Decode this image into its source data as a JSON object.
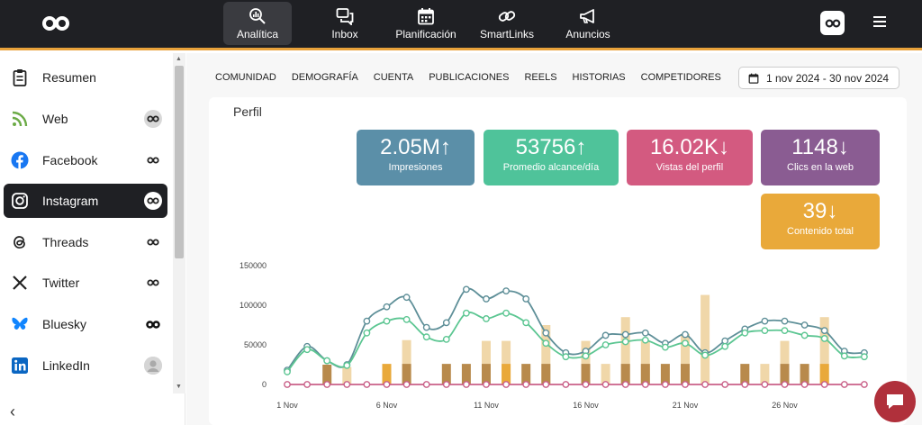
{
  "topnav": {
    "items": [
      {
        "label": "Analítica",
        "icon": "analytics-icon",
        "active": true
      },
      {
        "label": "Inbox",
        "icon": "chat-bubbles-icon"
      },
      {
        "label": "Planificación",
        "icon": "calendar-icon"
      },
      {
        "label": "SmartLinks",
        "icon": "link-icon"
      },
      {
        "label": "Anuncios",
        "icon": "megaphone-icon"
      }
    ]
  },
  "sidebar": {
    "items": [
      {
        "label": "Resumen",
        "icon": "clipboard-icon"
      },
      {
        "label": "Web",
        "icon": "rss-icon"
      },
      {
        "label": "Facebook",
        "icon": "facebook-icon"
      },
      {
        "label": "Instagram",
        "icon": "instagram-icon",
        "active": true
      },
      {
        "label": "Threads",
        "icon": "threads-icon"
      },
      {
        "label": "Twitter",
        "icon": "x-icon"
      },
      {
        "label": "Bluesky",
        "icon": "butterfly-icon"
      },
      {
        "label": "LinkedIn",
        "icon": "linkedin-icon"
      }
    ]
  },
  "tabs": [
    "COMUNIDAD",
    "DEMOGRAFÍA",
    "CUENTA",
    "PUBLICACIONES",
    "REELS",
    "HISTORIAS",
    "COMPETIDORES"
  ],
  "date_range": "1 nov 2024 - 30 nov 2024",
  "section_title": "Perfil",
  "kpis": [
    {
      "value": "2.05M",
      "arrow": "↑",
      "label": "Impresiones",
      "color": "#5b8fa8"
    },
    {
      "value": "53756",
      "arrow": "↑",
      "label": "Promedio alcance/día",
      "color": "#4fc39a"
    },
    {
      "value": "16.02K",
      "arrow": "↓",
      "label": "Vistas del perfil",
      "color": "#d35a80"
    },
    {
      "value": "1148",
      "arrow": "↓",
      "label": "Clics en la web",
      "color": "#8a5c92"
    },
    {
      "value": "39",
      "arrow": "↓",
      "label": "Contenido total",
      "color": "#e9a93a"
    }
  ],
  "colors": {
    "topbar": "#1f2024",
    "accent": "#e9a23b",
    "line_impressions": "#5e8f98",
    "line_reach": "#5cc692",
    "line_zero": "#c96088",
    "bar_light": "#f0d7a9",
    "bar_brown": "#b88a4c",
    "bar_orange": "#e9a93a"
  },
  "chart_data": {
    "type": "line",
    "x": [
      "1 Nov",
      "2 Nov",
      "3 Nov",
      "4 Nov",
      "5 Nov",
      "6 Nov",
      "7 Nov",
      "8 Nov",
      "9 Nov",
      "10 Nov",
      "11 Nov",
      "12 Nov",
      "13 Nov",
      "14 Nov",
      "15 Nov",
      "16 Nov",
      "17 Nov",
      "18 Nov",
      "19 Nov",
      "20 Nov",
      "21 Nov",
      "22 Nov",
      "23 Nov",
      "24 Nov",
      "25 Nov",
      "26 Nov",
      "27 Nov",
      "28 Nov",
      "29 Nov",
      "30 Nov"
    ],
    "x_tick_labels": [
      "1 Nov",
      "6 Nov",
      "11 Nov",
      "16 Nov",
      "21 Nov",
      "26 Nov"
    ],
    "x_tick_index": [
      0,
      5,
      10,
      15,
      20,
      25
    ],
    "y_ticks": [
      0,
      50000,
      100000,
      150000
    ],
    "ylim": [
      0,
      150000
    ],
    "series": [
      {
        "values": [
          18000,
          48000,
          30000,
          25000,
          80000,
          98000,
          110000,
          72000,
          78000,
          120000,
          108000,
          118000,
          108000,
          65000,
          40000,
          42000,
          62000,
          63000,
          65000,
          52000,
          63000,
          40000,
          55000,
          70000,
          80000,
          80000,
          75000,
          68000,
          42000,
          40000
        ]
      },
      {
        "values": [
          16000,
          44000,
          30000,
          24000,
          65000,
          80000,
          82000,
          60000,
          57000,
          90000,
          83000,
          90000,
          78000,
          52000,
          35000,
          36000,
          50000,
          54000,
          56000,
          47000,
          52000,
          37000,
          48000,
          65000,
          68000,
          68000,
          62000,
          58000,
          36000,
          35000
        ]
      },
      {
        "values": [
          0,
          0,
          0,
          0,
          0,
          0,
          0,
          0,
          0,
          0,
          0,
          0,
          0,
          0,
          0,
          0,
          0,
          0,
          0,
          0,
          0,
          0,
          0,
          0,
          0,
          0,
          0,
          0,
          0,
          0
        ]
      }
    ],
    "bars": [
      {
        "x": 2,
        "value": 25000,
        "kind": "brown"
      },
      {
        "x": 3,
        "value": 22000,
        "kind": "light"
      },
      {
        "x": 5,
        "value": 26000,
        "kind": "orange"
      },
      {
        "x": 6,
        "value": 56000,
        "kind": "light"
      },
      {
        "x": 6,
        "value": 26000,
        "kind": "brown"
      },
      {
        "x": 8,
        "value": 26000,
        "kind": "brown"
      },
      {
        "x": 9,
        "value": 26000,
        "kind": "brown"
      },
      {
        "x": 10,
        "value": 55000,
        "kind": "light"
      },
      {
        "x": 10,
        "value": 26000,
        "kind": "brown"
      },
      {
        "x": 11,
        "value": 55000,
        "kind": "light"
      },
      {
        "x": 11,
        "value": 26000,
        "kind": "orange"
      },
      {
        "x": 12,
        "value": 26000,
        "kind": "brown"
      },
      {
        "x": 13,
        "value": 75000,
        "kind": "light"
      },
      {
        "x": 13,
        "value": 26000,
        "kind": "brown"
      },
      {
        "x": 15,
        "value": 55000,
        "kind": "light"
      },
      {
        "x": 15,
        "value": 26000,
        "kind": "brown"
      },
      {
        "x": 16,
        "value": 26000,
        "kind": "light"
      },
      {
        "x": 17,
        "value": 85000,
        "kind": "light"
      },
      {
        "x": 17,
        "value": 26000,
        "kind": "brown"
      },
      {
        "x": 18,
        "value": 55000,
        "kind": "light"
      },
      {
        "x": 18,
        "value": 26000,
        "kind": "brown"
      },
      {
        "x": 19,
        "value": 26000,
        "kind": "brown"
      },
      {
        "x": 20,
        "value": 64000,
        "kind": "light"
      },
      {
        "x": 20,
        "value": 26000,
        "kind": "brown"
      },
      {
        "x": 21,
        "value": 113000,
        "kind": "light"
      },
      {
        "x": 23,
        "value": 26000,
        "kind": "brown"
      },
      {
        "x": 24,
        "value": 26000,
        "kind": "light"
      },
      {
        "x": 25,
        "value": 55000,
        "kind": "light"
      },
      {
        "x": 25,
        "value": 26000,
        "kind": "brown"
      },
      {
        "x": 26,
        "value": 26000,
        "kind": "brown"
      },
      {
        "x": 27,
        "value": 85000,
        "kind": "light"
      },
      {
        "x": 27,
        "value": 26000,
        "kind": "orange"
      }
    ]
  }
}
